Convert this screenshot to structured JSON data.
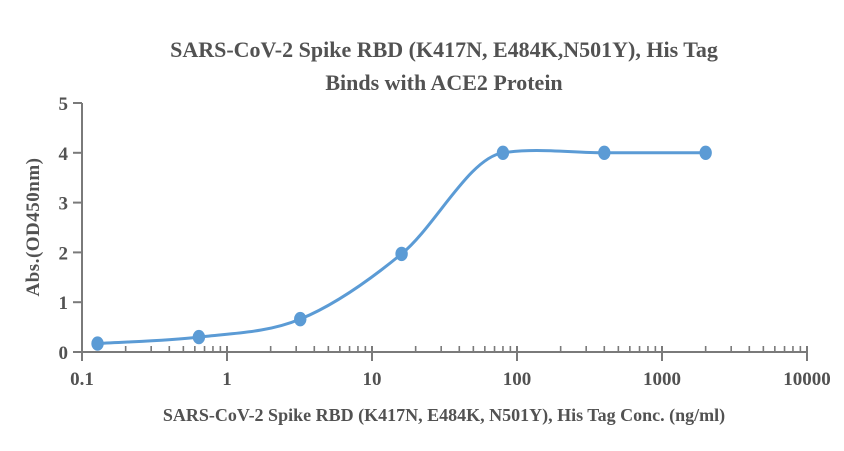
{
  "chart_data": {
    "type": "scatter",
    "curve": "smooth-sigmoid",
    "title_line1": "SARS-CoV-2 Spike RBD (K417N, E484K,N501Y), His Tag",
    "title_line2": "Binds with ACE2 Protein",
    "xlabel": "SARS-CoV-2 Spike RBD (K417N, E484K, N501Y), His Tag Conc. (ng/ml)",
    "ylabel": "Abs.(OD450nm)",
    "x_scale": "log10",
    "xlim": [
      0.1,
      10000
    ],
    "ylim": [
      0,
      5
    ],
    "x_major_ticks": [
      0.1,
      1,
      10,
      100,
      1000,
      10000
    ],
    "x_major_tick_labels": [
      "0.1",
      "1",
      "10",
      "100",
      "1000",
      "10000"
    ],
    "y_ticks": [
      0,
      1,
      2,
      3,
      4,
      5
    ],
    "y_tick_labels": [
      "0",
      "1",
      "2",
      "3",
      "4",
      "5"
    ],
    "grid": false,
    "legend": "none",
    "series": [
      {
        "x": [
          0.128,
          0.64,
          3.2,
          16,
          80,
          400,
          2000
        ],
        "y": [
          0.17,
          0.3,
          0.66,
          1.97,
          4.0,
          4.0,
          4.0
        ],
        "marker": "circle",
        "color": "#5B9BD5"
      }
    ],
    "colors": {
      "series": "#5B9BD5",
      "axis": "#7a7a7a",
      "text": "#525252",
      "background": "#ffffff"
    }
  }
}
